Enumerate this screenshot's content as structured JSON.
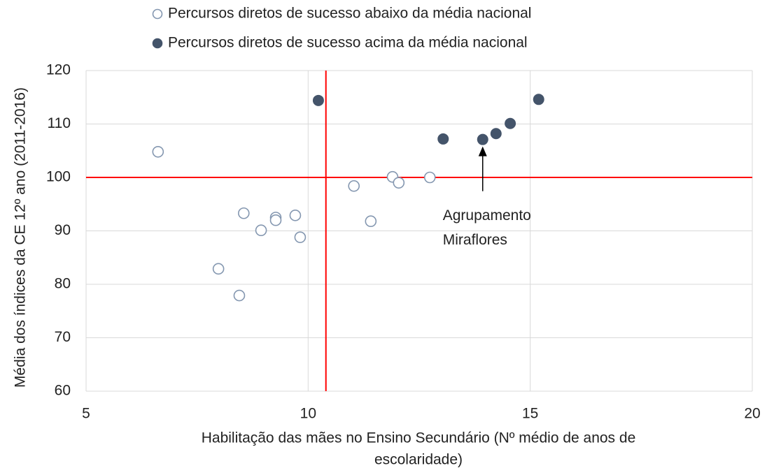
{
  "chart_data": {
    "type": "scatter",
    "xlabel": [
      "Habilitação das mães no Ensino Secundário (Nº médio de anos de",
      "escolaridade)"
    ],
    "ylabel": "Média dos índices da CE 12º ano (2011-2016)",
    "xlim": [
      5,
      20
    ],
    "xticks": [
      5,
      10,
      15,
      20
    ],
    "ylim": [
      60,
      120
    ],
    "yticks": [
      60,
      70,
      80,
      90,
      100,
      110,
      120
    ],
    "grid": true,
    "legend": "top",
    "series": [
      {
        "name": "Percursos diretos de sucesso abaixo da média nacional",
        "color": "#8497b0",
        "filled": false,
        "x": [
          6.62,
          7.98,
          8.45,
          8.55,
          8.94,
          9.27,
          9.27,
          9.71,
          9.82,
          11.03,
          11.41,
          11.9,
          12.04,
          12.74
        ],
        "values": [
          104.8,
          82.9,
          77.9,
          93.3,
          90.1,
          92.5,
          92.0,
          92.9,
          88.8,
          98.4,
          91.8,
          100.1,
          99.0,
          100.0
        ]
      },
      {
        "name": "Percursos diretos de sucesso acima da média nacional",
        "color": "#44546a",
        "filled": true,
        "x": [
          10.23,
          13.04,
          13.93,
          14.23,
          14.55,
          15.19
        ],
        "values": [
          114.4,
          107.2,
          107.1,
          108.2,
          110.1,
          114.6
        ]
      }
    ],
    "reference_lines": {
      "x": 10.4,
      "y": 100,
      "color": "#ff0000"
    },
    "annotation": {
      "text": [
        "Agrupamento",
        "Miraflores"
      ],
      "series": 1,
      "point": 2
    }
  }
}
